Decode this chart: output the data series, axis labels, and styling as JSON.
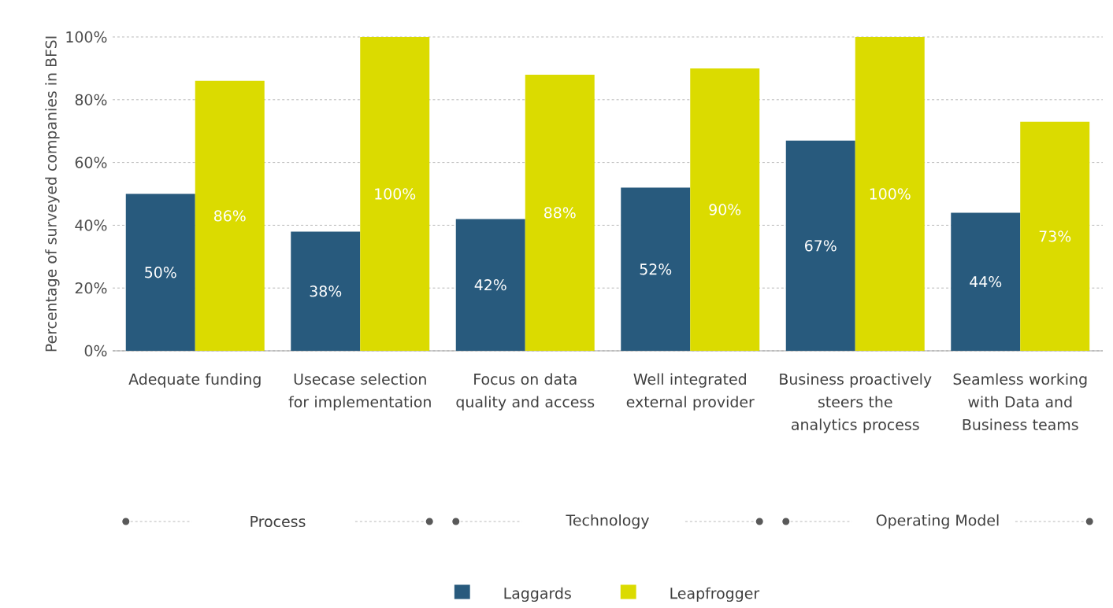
{
  "chart_data": {
    "type": "bar",
    "ylabel": "Percentage of surveyed companies in BFSI",
    "categories": [
      "Adequate funding",
      "Usecase selection for implementation",
      "Focus on data quality and access",
      "Well integrated external provider",
      "Business proactively steers the analytics process",
      "Seamless working with Data and Business teams"
    ],
    "series": [
      {
        "name": "Laggards",
        "color": "#285a7d",
        "values": [
          50,
          38,
          42,
          52,
          67,
          44
        ],
        "value_labels": [
          "50%",
          "38%",
          "42%",
          "52%",
          "67%",
          "44%"
        ]
      },
      {
        "name": "Leapfrogger",
        "color": "#dbdb00",
        "values": [
          86,
          100,
          88,
          90,
          100,
          73
        ],
        "value_labels": [
          "86%",
          "100%",
          "88%",
          "90%",
          "100%",
          "73%"
        ]
      }
    ],
    "ylim": [
      0,
      100
    ],
    "yticks": [
      {
        "value": 0,
        "label": "0%"
      },
      {
        "value": 20,
        "label": "20%"
      },
      {
        "value": 40,
        "label": "40%"
      },
      {
        "value": 60,
        "label": "60%"
      },
      {
        "value": 80,
        "label": "80%"
      },
      {
        "value": 100,
        "label": "100%"
      }
    ],
    "grid": "y",
    "legend": "bottom",
    "annotations": [
      "Process",
      "Technology",
      "Operating Model"
    ]
  }
}
